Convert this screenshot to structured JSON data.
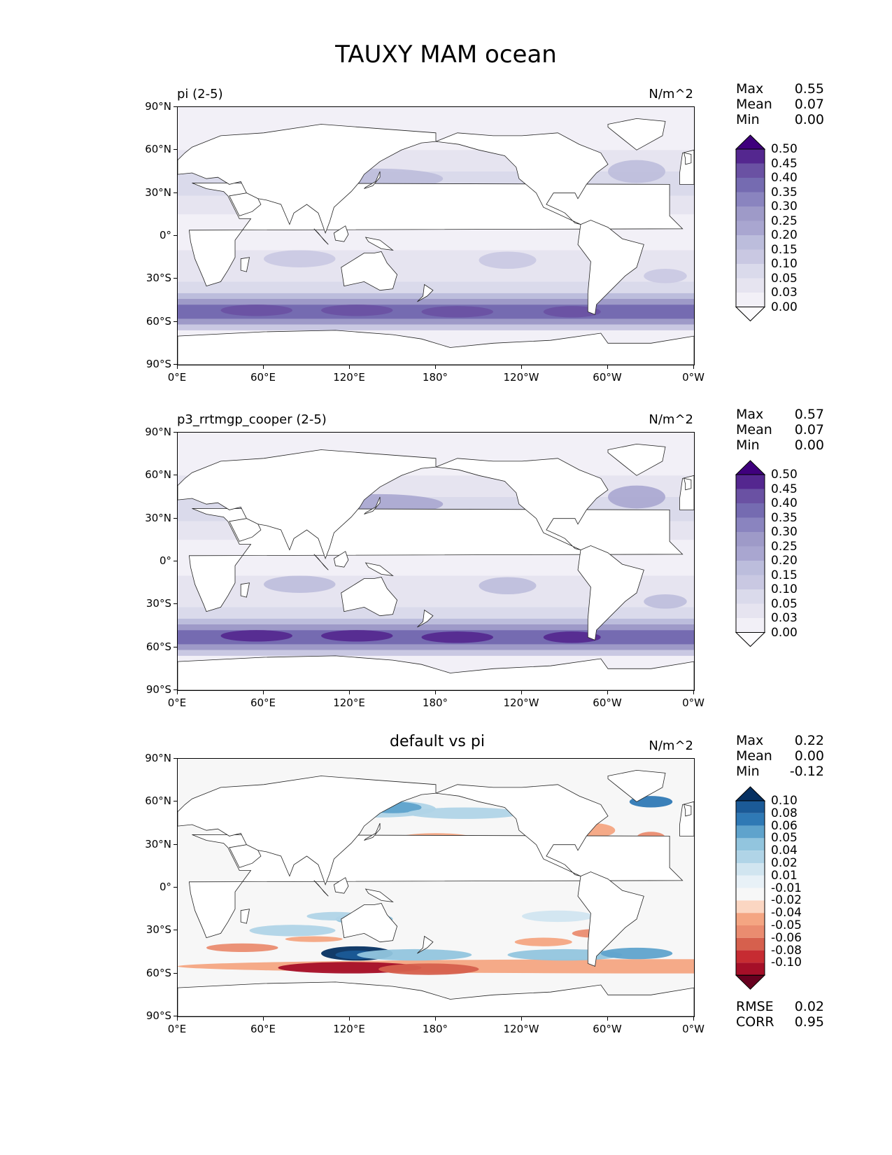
{
  "figure_title": "TAUXY MAM ocean",
  "x_tick_labels": [
    "0°E",
    "60°E",
    "120°E",
    "180°",
    "120°W",
    "60°W",
    "0°W"
  ],
  "y_tick_labels": [
    "90°N",
    "60°N",
    "30°N",
    "0°",
    "30°S",
    "60°S",
    "90°S"
  ],
  "panels": [
    {
      "title": "pi (2-5)",
      "units": "N/m^2",
      "stats": [
        {
          "label": "Max",
          "value": "0.55"
        },
        {
          "label": "Mean",
          "value": "0.07"
        },
        {
          "label": "Min",
          "value": "0.00"
        }
      ],
      "colorbar_labels": [
        "0.50",
        "0.45",
        "0.40",
        "0.35",
        "0.30",
        "0.25",
        "0.20",
        "0.15",
        "0.10",
        "0.05",
        "0.03",
        "0.00"
      ]
    },
    {
      "title": "p3_rrtmgp_cooper (2-5)",
      "units": "N/m^2",
      "stats": [
        {
          "label": "Max",
          "value": "0.57"
        },
        {
          "label": "Mean",
          "value": "0.07"
        },
        {
          "label": "Min",
          "value": "0.00"
        }
      ],
      "colorbar_labels": [
        "0.50",
        "0.45",
        "0.40",
        "0.35",
        "0.30",
        "0.25",
        "0.20",
        "0.15",
        "0.10",
        "0.05",
        "0.03",
        "0.00"
      ]
    },
    {
      "title": "default vs pi",
      "units": "N/m^2",
      "stats": [
        {
          "label": "Max",
          "value": "0.22"
        },
        {
          "label": "Mean",
          "value": "0.00"
        },
        {
          "label": "Min",
          "value": "-0.12"
        }
      ],
      "colorbar_labels": [
        "0.10",
        "0.08",
        "0.06",
        "0.05",
        "0.04",
        "0.02",
        "0.01",
        "-0.01",
        "-0.02",
        "-0.04",
        "-0.05",
        "-0.06",
        "-0.08",
        "-0.10"
      ],
      "metrics": [
        {
          "label": "RMSE",
          "value": "0.02"
        },
        {
          "label": "CORR",
          "value": "0.95"
        }
      ]
    }
  ],
  "colors": {
    "purples": [
      "#fcfbfd",
      "#f2f0f7",
      "#e6e4f0",
      "#dadaeb",
      "#c9c8e2",
      "#bcbddc",
      "#a9a6d0",
      "#9e9ac8",
      "#8a84bf",
      "#756bb1",
      "#6a51a3",
      "#54278f",
      "#3f007d"
    ],
    "rdbu": [
      "#67001f",
      "#a50f28",
      "#c62c32",
      "#d6604d",
      "#ea8c70",
      "#f4a582",
      "#fbd6c2",
      "#f7f7f7",
      "#e8f1f7",
      "#d1e5f0",
      "#b0d4e7",
      "#92c5de",
      "#5fa3cc",
      "#2f79b5",
      "#1b5a97",
      "#053061"
    ]
  },
  "chart_data": [
    {
      "type": "heatmap",
      "title": "pi (2-5)",
      "units": "N/m^2",
      "xlabel": "",
      "ylabel": "",
      "xlim": [
        0,
        360
      ],
      "ylim": [
        -90,
        90
      ],
      "x_ticks": [
        "0°E",
        "60°E",
        "120°E",
        "180°",
        "120°W",
        "60°W",
        "0°W"
      ],
      "y_ticks": [
        "90°N",
        "60°N",
        "30°N",
        "0°",
        "30°S",
        "60°S",
        "90°S"
      ],
      "colorbar_levels": [
        0.0,
        0.03,
        0.05,
        0.1,
        0.15,
        0.2,
        0.25,
        0.3,
        0.35,
        0.4,
        0.45,
        0.5
      ],
      "stats": {
        "max": 0.55,
        "mean": 0.07,
        "min": 0.0
      }
    },
    {
      "type": "heatmap",
      "title": "p3_rrtmgp_cooper (2-5)",
      "units": "N/m^2",
      "xlabel": "",
      "ylabel": "",
      "xlim": [
        0,
        360
      ],
      "ylim": [
        -90,
        90
      ],
      "x_ticks": [
        "0°E",
        "60°E",
        "120°E",
        "180°",
        "120°W",
        "60°W",
        "0°W"
      ],
      "y_ticks": [
        "90°N",
        "60°N",
        "30°N",
        "0°",
        "30°S",
        "60°S",
        "90°S"
      ],
      "colorbar_levels": [
        0.0,
        0.03,
        0.05,
        0.1,
        0.15,
        0.2,
        0.25,
        0.3,
        0.35,
        0.4,
        0.45,
        0.5
      ],
      "stats": {
        "max": 0.57,
        "mean": 0.07,
        "min": 0.0
      }
    },
    {
      "type": "heatmap",
      "title": "default vs pi",
      "units": "N/m^2",
      "xlabel": "",
      "ylabel": "",
      "xlim": [
        0,
        360
      ],
      "ylim": [
        -90,
        90
      ],
      "x_ticks": [
        "0°E",
        "60°E",
        "120°E",
        "180°",
        "120°W",
        "60°W",
        "0°W"
      ],
      "y_ticks": [
        "90°N",
        "60°N",
        "30°N",
        "0°",
        "30°S",
        "60°S",
        "90°S"
      ],
      "colorbar_levels": [
        -0.1,
        -0.08,
        -0.06,
        -0.05,
        -0.04,
        -0.02,
        -0.01,
        0.01,
        0.02,
        0.04,
        0.05,
        0.06,
        0.08,
        0.1
      ],
      "stats": {
        "max": 0.22,
        "mean": 0.0,
        "min": -0.12
      },
      "metrics": {
        "rmse": 0.02,
        "corr": 0.95
      }
    }
  ]
}
